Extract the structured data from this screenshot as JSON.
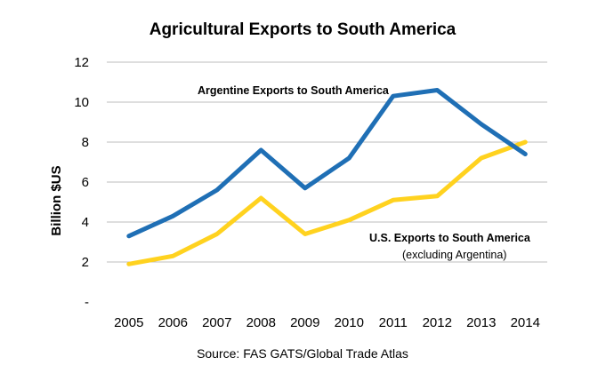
{
  "chart_data": {
    "type": "line",
    "title": "Agricultural Exports to South America",
    "xlabel": "",
    "ylabel": "Billion $US",
    "categories": [
      "2005",
      "2006",
      "2007",
      "2008",
      "2009",
      "2010",
      "2011",
      "2012",
      "2013",
      "2014"
    ],
    "y_ticks": [
      "-",
      "2",
      "4",
      "6",
      "8",
      "10",
      "12"
    ],
    "ylim": [
      0,
      12
    ],
    "grid": true,
    "series": [
      {
        "name": "Argentine Exports to South America",
        "color": "#1f6fb5",
        "values": [
          3.3,
          4.3,
          5.6,
          7.6,
          5.7,
          7.2,
          10.3,
          10.6,
          8.9,
          7.4
        ]
      },
      {
        "name": "U.S. Exports to South America",
        "name_note": "(excluding Argentina)",
        "color": "#ffd21f",
        "values": [
          1.9,
          2.3,
          3.4,
          5.2,
          3.4,
          4.1,
          5.1,
          5.3,
          7.2,
          8.0
        ]
      }
    ],
    "source": "Source: FAS GATS/Global Trade Atlas"
  }
}
